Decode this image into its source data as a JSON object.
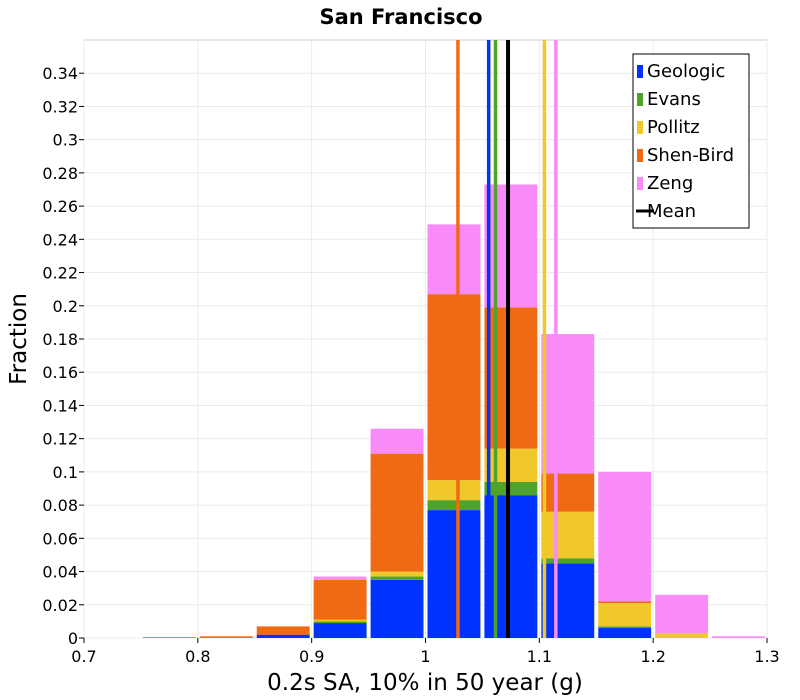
{
  "chart_data": {
    "type": "bar",
    "stacked": true,
    "title": "San Francisco",
    "xlabel": "0.2s SA, 10% in 50 year (g)",
    "ylabel": "Fraction",
    "xlim": [
      0.7,
      1.3
    ],
    "ylim": [
      0,
      0.36
    ],
    "grid": true,
    "legend_position": "top-right",
    "x_ticks": [
      "0.7",
      "0.8",
      "0.9",
      "1",
      "1.1",
      "1.2",
      "1.3"
    ],
    "y_ticks": [
      "0",
      "0.02",
      "0.04",
      "0.06",
      "0.08",
      "0.1",
      "0.12",
      "0.14",
      "0.16",
      "0.18",
      "0.2",
      "0.22",
      "0.24",
      "0.26",
      "0.28",
      "0.3",
      "0.32",
      "0.34"
    ],
    "bin_width": 0.05,
    "bin_centers": [
      0.725,
      0.775,
      0.825,
      0.875,
      0.925,
      0.975,
      1.025,
      1.075,
      1.125,
      1.175,
      1.225,
      1.275
    ],
    "series": [
      {
        "name": "Geologic",
        "color": "#0033ff",
        "values": [
          0,
          0,
          0,
          0.002,
          0.009,
          0.035,
          0.077,
          0.086,
          0.045,
          0.006,
          0,
          0
        ]
      },
      {
        "name": "Evans",
        "color": "#4fa32a",
        "values": [
          0,
          0,
          0,
          0,
          0.001,
          0.002,
          0.006,
          0.008,
          0.003,
          0.001,
          0,
          0
        ]
      },
      {
        "name": "Pollitz",
        "color": "#f0c82a",
        "values": [
          0,
          0,
          0,
          0,
          0.001,
          0.003,
          0.012,
          0.02,
          0.028,
          0.014,
          0.003,
          0
        ]
      },
      {
        "name": "Shen-Bird",
        "color": "#f06a14",
        "values": [
          0,
          0.0005,
          0.001,
          0.005,
          0.024,
          0.071,
          0.112,
          0.085,
          0.023,
          0.001,
          0,
          0
        ]
      },
      {
        "name": "Zeng",
        "color": "#f98bf9",
        "values": [
          0,
          0,
          0,
          0,
          0.002,
          0.015,
          0.042,
          0.074,
          0.084,
          0.078,
          0.023,
          0.001
        ]
      }
    ],
    "mean_lines": [
      {
        "name": "Geologic",
        "color": "#0033ff",
        "x": 1.0555
      },
      {
        "name": "Evans",
        "color": "#4fa32a",
        "x": 1.0615
      },
      {
        "name": "Pollitz",
        "color": "#f0c82a",
        "x": 1.1045
      },
      {
        "name": "Shen-Bird",
        "color": "#f06a14",
        "x": 1.0285
      },
      {
        "name": "Zeng",
        "color": "#f98bf9",
        "x": 1.1145
      },
      {
        "name": "Mean",
        "color": "#000000",
        "x": 1.0725
      }
    ],
    "legend": [
      {
        "label": "Geologic",
        "color": "#0033ff"
      },
      {
        "label": "Evans",
        "color": "#4fa32a"
      },
      {
        "label": "Pollitz",
        "color": "#f0c82a"
      },
      {
        "label": "Shen-Bird",
        "color": "#f06a14"
      },
      {
        "label": "Zeng",
        "color": "#f98bf9"
      },
      {
        "label": "Mean",
        "color": "#000000"
      }
    ]
  }
}
